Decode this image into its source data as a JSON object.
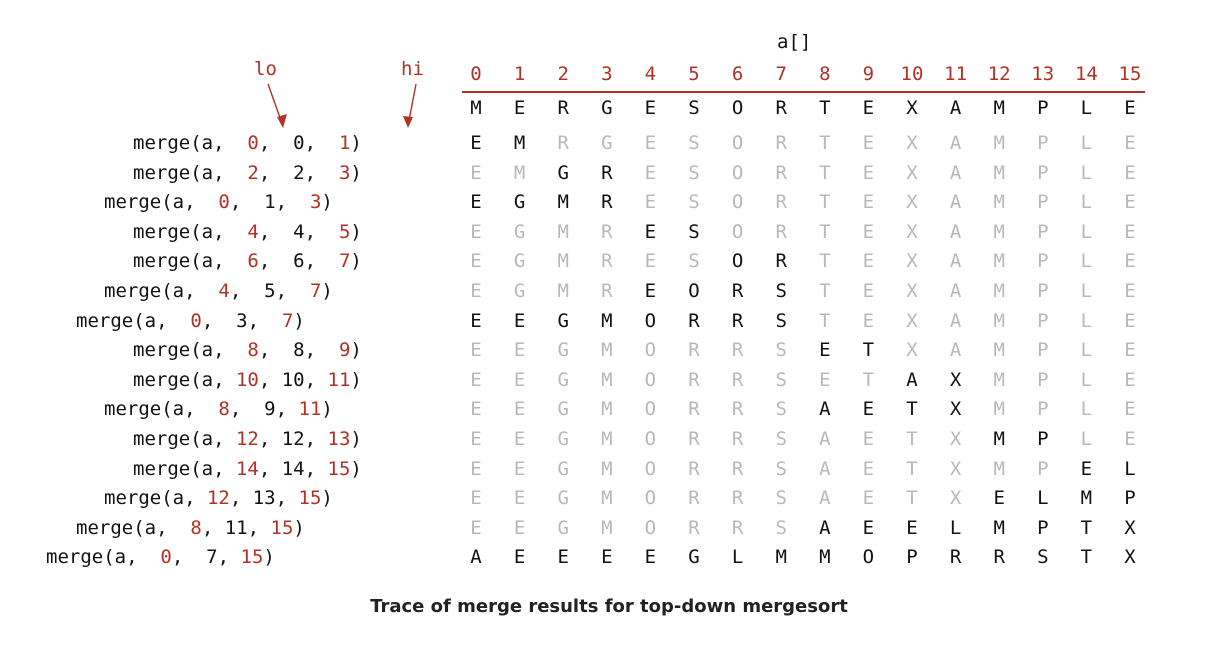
{
  "array_label": "a[]",
  "lo_label": "lo",
  "hi_label": "hi",
  "indices": [
    "0",
    "1",
    "2",
    "3",
    "4",
    "5",
    "6",
    "7",
    "8",
    "9",
    "10",
    "11",
    "12",
    "13",
    "14",
    "15"
  ],
  "initial_row": [
    "M",
    "E",
    "R",
    "G",
    "E",
    "S",
    "O",
    "R",
    "T",
    "E",
    "X",
    "A",
    "M",
    "P",
    "L",
    "E"
  ],
  "rows": [
    {
      "lo": "0",
      "mid": "0",
      "hi": "1",
      "values": [
        "E",
        "M",
        "R",
        "G",
        "E",
        "S",
        "O",
        "R",
        "T",
        "E",
        "X",
        "A",
        "M",
        "P",
        "L",
        "E"
      ]
    },
    {
      "lo": "2",
      "mid": "2",
      "hi": "3",
      "values": [
        "E",
        "M",
        "G",
        "R",
        "E",
        "S",
        "O",
        "R",
        "T",
        "E",
        "X",
        "A",
        "M",
        "P",
        "L",
        "E"
      ]
    },
    {
      "lo": "0",
      "mid": "1",
      "hi": "3",
      "values": [
        "E",
        "G",
        "M",
        "R",
        "E",
        "S",
        "O",
        "R",
        "T",
        "E",
        "X",
        "A",
        "M",
        "P",
        "L",
        "E"
      ]
    },
    {
      "lo": "4",
      "mid": "4",
      "hi": "5",
      "values": [
        "E",
        "G",
        "M",
        "R",
        "E",
        "S",
        "O",
        "R",
        "T",
        "E",
        "X",
        "A",
        "M",
        "P",
        "L",
        "E"
      ]
    },
    {
      "lo": "6",
      "mid": "6",
      "hi": "7",
      "values": [
        "E",
        "G",
        "M",
        "R",
        "E",
        "S",
        "O",
        "R",
        "T",
        "E",
        "X",
        "A",
        "M",
        "P",
        "L",
        "E"
      ]
    },
    {
      "lo": "4",
      "mid": "5",
      "hi": "7",
      "values": [
        "E",
        "G",
        "M",
        "R",
        "E",
        "O",
        "R",
        "S",
        "T",
        "E",
        "X",
        "A",
        "M",
        "P",
        "L",
        "E"
      ]
    },
    {
      "lo": "0",
      "mid": "3",
      "hi": "7",
      "values": [
        "E",
        "E",
        "G",
        "M",
        "O",
        "R",
        "R",
        "S",
        "T",
        "E",
        "X",
        "A",
        "M",
        "P",
        "L",
        "E"
      ]
    },
    {
      "lo": "8",
      "mid": "8",
      "hi": "9",
      "values": [
        "E",
        "E",
        "G",
        "M",
        "O",
        "R",
        "R",
        "S",
        "E",
        "T",
        "X",
        "A",
        "M",
        "P",
        "L",
        "E"
      ]
    },
    {
      "lo": "10",
      "mid": "10",
      "hi": "11",
      "values": [
        "E",
        "E",
        "G",
        "M",
        "O",
        "R",
        "R",
        "S",
        "E",
        "T",
        "A",
        "X",
        "M",
        "P",
        "L",
        "E"
      ]
    },
    {
      "lo": "8",
      "mid": "9",
      "hi": "11",
      "values": [
        "E",
        "E",
        "G",
        "M",
        "O",
        "R",
        "R",
        "S",
        "A",
        "E",
        "T",
        "X",
        "M",
        "P",
        "L",
        "E"
      ]
    },
    {
      "lo": "12",
      "mid": "12",
      "hi": "13",
      "values": [
        "E",
        "E",
        "G",
        "M",
        "O",
        "R",
        "R",
        "S",
        "A",
        "E",
        "T",
        "X",
        "M",
        "P",
        "L",
        "E"
      ]
    },
    {
      "lo": "14",
      "mid": "14",
      "hi": "15",
      "values": [
        "E",
        "E",
        "G",
        "M",
        "O",
        "R",
        "R",
        "S",
        "A",
        "E",
        "T",
        "X",
        "M",
        "P",
        "E",
        "L"
      ]
    },
    {
      "lo": "12",
      "mid": "13",
      "hi": "15",
      "values": [
        "E",
        "E",
        "G",
        "M",
        "O",
        "R",
        "R",
        "S",
        "A",
        "E",
        "T",
        "X",
        "E",
        "L",
        "M",
        "P"
      ]
    },
    {
      "lo": "8",
      "mid": "11",
      "hi": "15",
      "values": [
        "E",
        "E",
        "G",
        "M",
        "O",
        "R",
        "R",
        "S",
        "A",
        "E",
        "E",
        "L",
        "M",
        "P",
        "T",
        "X"
      ]
    },
    {
      "lo": "0",
      "mid": "7",
      "hi": "15",
      "values": [
        "A",
        "E",
        "E",
        "E",
        "E",
        "G",
        "L",
        "M",
        "M",
        "O",
        "P",
        "R",
        "R",
        "S",
        "T",
        "X"
      ]
    }
  ],
  "caption": "Trace of merge results for top-down mergesort",
  "colors": {
    "accent_red": "#b03228",
    "active_black": "#111111",
    "inactive_grey": "#b8b8b8"
  }
}
